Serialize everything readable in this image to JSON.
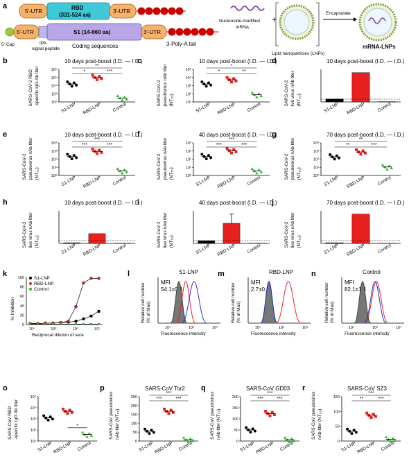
{
  "figure": {
    "a": {
      "label": "a",
      "utr5": "5'-UTR",
      "rbd_label": "RBD",
      "rbd_range": "(331-524 aa)",
      "utr3": "3'-UTR",
      "utr5_b": "5'-UTR",
      "s1_label": "S1 (14-660 aa)",
      "utr3_b": "3'-UTR",
      "cap": "5'-Cap",
      "tpa": "tPA",
      "signal": "signal peptide",
      "coding": "Coding sequences",
      "polya": "3-Poly-A tail",
      "mrna_label1": "Nucleoside-modified",
      "mrna_label2": "mRNA",
      "lnp_label": "Lipid nanoparticles (LNPs)",
      "encapsulate": "Encapsulate",
      "product": "mRNA-LNPs",
      "plus": "+"
    },
    "colors": {
      "s1": "#000000",
      "rbd": "#e8201f",
      "control": "#22bb22",
      "rbd_box": "#3ec8d8",
      "s1_box": "#b9a6e6",
      "utr": "#f6b26b",
      "polya": "#cc0000"
    },
    "groups": [
      "S1-LNP",
      "RBD-LNP",
      "Control"
    ],
    "panels": [
      {
        "id": "b",
        "label": "b",
        "title": "10 days post-boost (I.D. — I.D.)",
        "ylabel": [
          "SARS-CoV-2 RBD",
          "-specific IgG Ab titer"
        ],
        "type": "dot",
        "yticks": [
          "10⁶",
          "10⁵",
          "10⁴",
          "10³",
          "10²"
        ],
        "sig": [
          "**",
          "*",
          "***"
        ]
      },
      {
        "id": "c",
        "label": "c",
        "title": "10 days post-boost (I.D. — I.D.)",
        "ylabel": [
          "SARS-CoV-2",
          "pseudovirus nAb titer",
          "(NT₅₀)"
        ],
        "type": "dot",
        "yticks": [
          "10⁵",
          "10⁴",
          "10³",
          "10²",
          "10¹"
        ],
        "sig": [
          "*",
          "*",
          "**"
        ]
      },
      {
        "id": "d",
        "label": "d",
        "title": "10 days post-boost (I.D. — I.D.)",
        "ylabel": [
          "SARS-CoV-2",
          "live virus nAb titer",
          "(NT₅₀)"
        ],
        "type": "bar",
        "values": [
          55,
          540,
          5
        ],
        "ymax": 600
      },
      {
        "id": "e",
        "label": "e",
        "title": "10 days post-boost (I.D. — I.D.)",
        "ylabel": [
          "SARS-CoV-2",
          "pseudovirus nAb titer",
          "(NT₅₀)"
        ],
        "type": "dot",
        "yticks": [
          "10⁴",
          "10³",
          "10²",
          "10¹",
          "10⁰"
        ],
        "sig": [
          "***",
          "***",
          "***"
        ]
      },
      {
        "id": "f",
        "label": "f",
        "title": "40 days post-boost (I.D. — I.D.)",
        "ylabel": [
          "SARS-CoV-2",
          "pseudovirus nAb titer",
          "(NT₅₀)"
        ],
        "type": "dot",
        "yticks": [
          "10⁴",
          "10³",
          "10²",
          "10¹",
          "10⁰"
        ],
        "sig": [
          "***",
          "***",
          "***"
        ]
      },
      {
        "id": "g",
        "label": "g",
        "title": "70 days post-boost (I.D. — I.D.)",
        "ylabel": [
          "SARS-CoV-2",
          "pseudovirus nAb titer",
          "(NT₅₀)"
        ],
        "type": "dot",
        "yticks": [
          "10⁴",
          "10³",
          "10²",
          "10¹",
          "10⁰"
        ],
        "sig": [
          "**",
          "**",
          "***"
        ]
      },
      {
        "id": "h",
        "label": "h",
        "title": "10 days post-boost (I.D. — I.D.)",
        "ylabel": [
          "SARS-CoV-2",
          "live virus nAb titer",
          "(NT₅₀)"
        ],
        "type": "bar",
        "values": [
          12,
          180,
          4
        ],
        "ymax": 600
      },
      {
        "id": "i",
        "label": "i",
        "title": "40 days post-boost (I.D. — I.D.)",
        "ylabel": [
          "SARS-CoV-2",
          "live virus nAb titer",
          "(NT₅₀)"
        ],
        "type": "bar",
        "values": [
          50,
          370,
          4
        ],
        "ymax": 600,
        "err": 170
      },
      {
        "id": "j",
        "label": "j",
        "title": "70 days post-boost (I.D. — I.D.)",
        "ylabel": [
          "SARS-CoV-2",
          "live virus nAb titer",
          "(NT₅₀)"
        ],
        "type": "bar",
        "values": [
          12,
          540,
          4
        ],
        "ymax": 600
      },
      {
        "id": "o",
        "label": "o",
        "title": "",
        "ylabel": [
          "SARS-CoV RBD",
          "-specific IgG Ab titer"
        ],
        "type": "dot",
        "yticks": [
          "10⁵",
          "10⁴",
          "10³",
          "10²",
          "10¹"
        ],
        "sig": [
          "*"
        ]
      },
      {
        "id": "p",
        "label": "p",
        "title": "SARS-CoV Tor2",
        "ylabel": [
          "SARS-CoV pseudovirus",
          "nAb titer (NT₅₀)"
        ],
        "type": "dot",
        "yticks": [
          "250",
          "200",
          "150",
          "100",
          "50",
          "0"
        ],
        "sig": [
          "***",
          "***",
          "***"
        ]
      },
      {
        "id": "q",
        "label": "q",
        "title": "SARS-CoV GD03",
        "ylabel": [
          "SARS-CoV pseudovirus",
          "nAb titer (NT₅₀)"
        ],
        "type": "dot",
        "yticks": [
          "200",
          "150",
          "100",
          "50",
          "0"
        ],
        "sig": [
          "***",
          "***",
          "***"
        ]
      },
      {
        "id": "r",
        "label": "r",
        "title": "SARS-CoV SZ3",
        "ylabel": [
          "SARS-CoV pseudovirus",
          "nAb titer (NT₅₀)"
        ],
        "type": "dot",
        "yticks": [
          "150",
          "100",
          "50",
          "0"
        ],
        "sig": [
          "***",
          "**",
          "***"
        ]
      }
    ],
    "k": {
      "label": "k",
      "ylabel": "% Inhibition",
      "xlabel": "Reciprocal dilution of sera",
      "legend": [
        "S1-LNP",
        "RBD-LNP",
        "Control"
      ],
      "yticks": [
        "100",
        "80",
        "60",
        "40",
        "20",
        "0"
      ],
      "xticks": [
        "10⁴",
        "10³",
        "10²",
        "10¹"
      ]
    },
    "flow": [
      {
        "id": "l",
        "label": "l",
        "title": "S1-LNP",
        "mfi": "MFI",
        "value": "54.1±0.4"
      },
      {
        "id": "m",
        "label": "m",
        "title": "RBD-LNP",
        "mfi": "MFI",
        "value": "2.7±0.6"
      },
      {
        "id": "n",
        "label": "n",
        "title": "Control",
        "mfi": "MFI",
        "value": "82.1±1.4"
      }
    ],
    "flow_axes": {
      "ylabel": [
        "Relative cell number",
        "(% of Max)"
      ],
      "xlabel": "Fluorescence intensity",
      "xticks": [
        "10¹",
        "10³",
        "10⁵"
      ]
    }
  }
}
